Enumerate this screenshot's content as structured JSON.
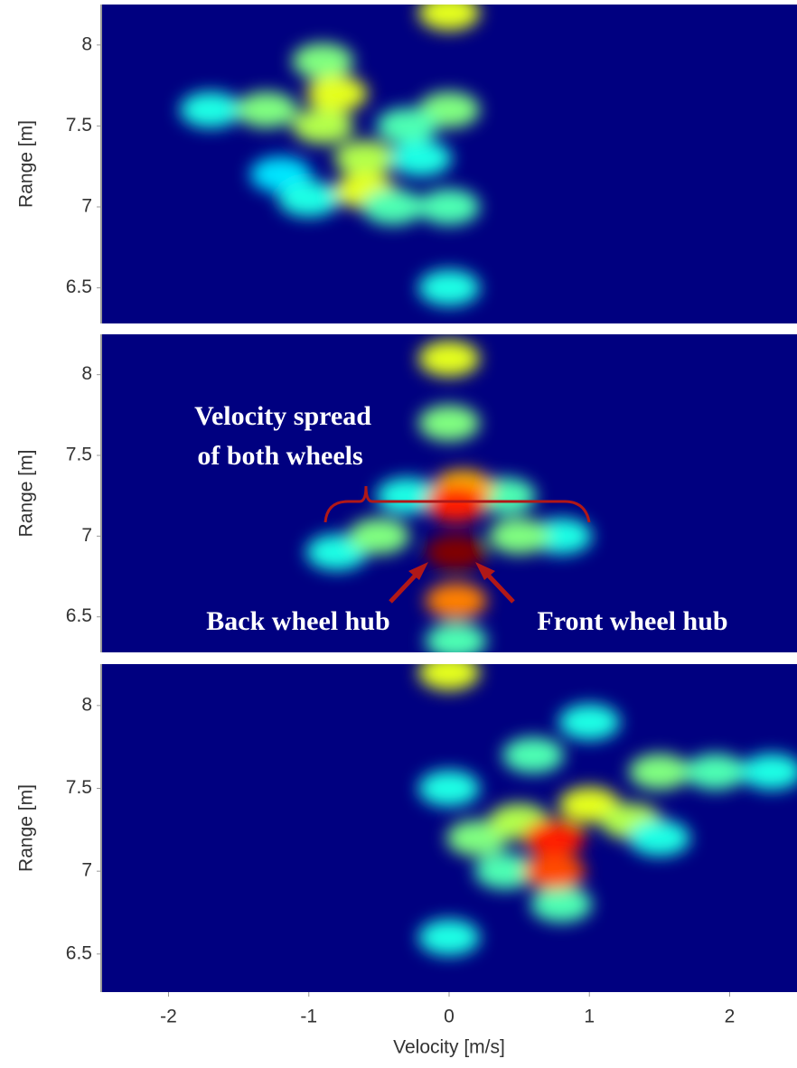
{
  "chart_data": [
    {
      "type": "heatmap",
      "colormap": "jet",
      "ylabel": "Range [m]",
      "xlim": [
        -2.48,
        2.48
      ],
      "ylim": [
        6.28,
        8.25
      ],
      "yticks": [
        6.5,
        7,
        7.5,
        8
      ],
      "points": {
        "x": [
          0,
          0,
          0,
          0,
          -1.7,
          -1.3,
          -1.2,
          -1.0,
          -0.9,
          -0.9,
          -0.8,
          -0.6,
          -0.6,
          -0.4,
          -0.3,
          -0.2
        ],
        "y": [
          8.2,
          7.6,
          7.0,
          6.5,
          7.6,
          7.6,
          7.2,
          7.05,
          7.5,
          7.9,
          7.7,
          7.3,
          7.1,
          7.0,
          7.5,
          7.3
        ],
        "intensity": [
          0.6,
          0.5,
          0.45,
          0.4,
          0.4,
          0.5,
          0.35,
          0.4,
          0.55,
          0.5,
          0.6,
          0.55,
          0.6,
          0.45,
          0.45,
          0.4
        ]
      }
    },
    {
      "type": "heatmap",
      "colormap": "jet",
      "ylabel": "Range [m]",
      "xlim": [
        -2.48,
        2.48
      ],
      "ylim": [
        6.28,
        8.25
      ],
      "yticks": [
        6.5,
        7,
        7.5,
        8
      ],
      "annotations": [
        "Velocity spread",
        "of both wheels",
        "Back wheel hub",
        "Front wheel hub"
      ],
      "points": {
        "x": [
          -0.8,
          -0.5,
          -0.3,
          0.8,
          0.5,
          0.4,
          0,
          0,
          0.05,
          0.1,
          0.05,
          0.05,
          0.05
        ],
        "y": [
          6.9,
          7.0,
          7.25,
          7.0,
          7.0,
          7.25,
          7.7,
          8.1,
          6.35,
          7.3,
          6.6,
          7.2,
          6.9
        ],
        "intensity": [
          0.4,
          0.5,
          0.4,
          0.4,
          0.5,
          0.45,
          0.5,
          0.6,
          0.45,
          0.7,
          0.75,
          0.85,
          1.0
        ]
      }
    },
    {
      "type": "heatmap",
      "colormap": "jet",
      "ylabel": "Range [m]",
      "xlabel": "Velocity [m/s]",
      "xlim": [
        -2.48,
        2.48
      ],
      "ylim": [
        6.27,
        8.25
      ],
      "yticks": [
        6.5,
        7,
        7.5,
        8
      ],
      "xticks": [
        -2,
        -1,
        0,
        1,
        2
      ],
      "points": {
        "x": [
          0,
          0,
          0,
          0.2,
          0.4,
          0.5,
          0.6,
          0.8,
          1.0,
          1.0,
          1.3,
          1.5,
          1.5,
          1.9,
          2.3,
          0.75,
          0.75
        ],
        "y": [
          8.2,
          7.5,
          6.6,
          7.2,
          7.0,
          7.3,
          7.7,
          6.8,
          7.4,
          7.9,
          7.3,
          7.6,
          7.2,
          7.6,
          7.6,
          7.0,
          7.2
        ],
        "intensity": [
          0.6,
          0.4,
          0.4,
          0.5,
          0.45,
          0.55,
          0.45,
          0.45,
          0.6,
          0.4,
          0.55,
          0.5,
          0.4,
          0.45,
          0.4,
          0.8,
          0.85
        ]
      }
    }
  ]
}
